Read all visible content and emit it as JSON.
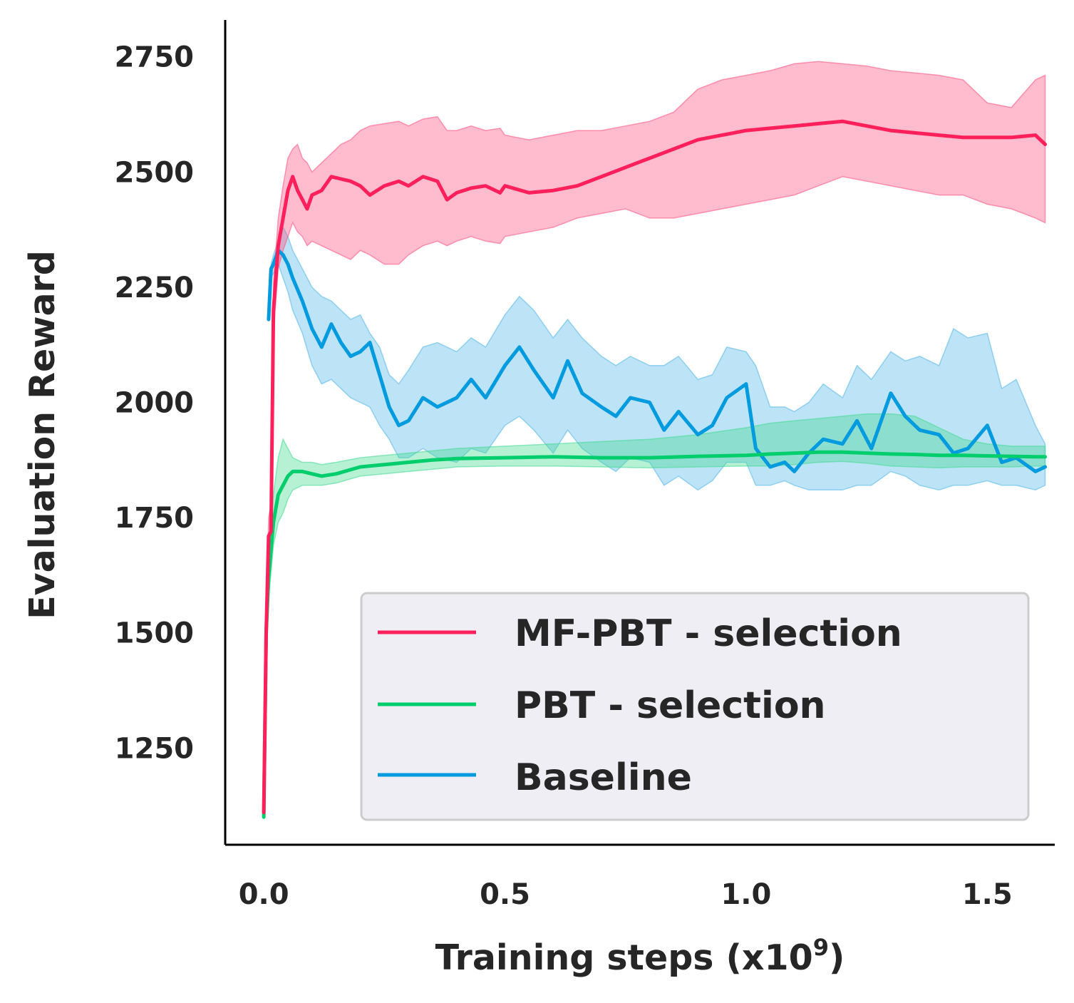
{
  "chart_data": {
    "type": "line",
    "title": "",
    "xlabel_prefix": "Training steps (x10",
    "xlabel_exp": "9",
    "xlabel_suffix": ")",
    "ylabel": "Evaluation Reward",
    "xlim": [
      -0.08,
      1.64
    ],
    "ylim": [
      1040,
      2830
    ],
    "x_ticks": [
      {
        "value": 0.0,
        "label": "0.0"
      },
      {
        "value": 0.5,
        "label": "0.5"
      },
      {
        "value": 1.0,
        "label": "1.0"
      },
      {
        "value": 1.5,
        "label": "1.5"
      }
    ],
    "y_ticks": [
      {
        "value": 1250,
        "label": "1250"
      },
      {
        "value": 1500,
        "label": "1500"
      },
      {
        "value": 1750,
        "label": "1750"
      },
      {
        "value": 2000,
        "label": "2000"
      },
      {
        "value": 2250,
        "label": "2250"
      },
      {
        "value": 2500,
        "label": "2500"
      },
      {
        "value": 2750,
        "label": "2750"
      }
    ],
    "grid": false,
    "legend_position": "lower-right",
    "series": [
      {
        "name": "MF-PBT - selection",
        "color": "#ff1f5b",
        "band_color": "#ff4f7f",
        "x": [
          0.0,
          0.005,
          0.01,
          0.015,
          0.02,
          0.03,
          0.04,
          0.05,
          0.06,
          0.07,
          0.08,
          0.09,
          0.1,
          0.12,
          0.14,
          0.16,
          0.18,
          0.2,
          0.22,
          0.25,
          0.28,
          0.3,
          0.33,
          0.36,
          0.38,
          0.4,
          0.43,
          0.46,
          0.49,
          0.5,
          0.55,
          0.6,
          0.65,
          0.7,
          0.75,
          0.8,
          0.85,
          0.9,
          0.95,
          1.0,
          1.05,
          1.1,
          1.15,
          1.2,
          1.25,
          1.3,
          1.35,
          1.4,
          1.45,
          1.5,
          1.55,
          1.6,
          1.62
        ],
        "y": [
          1110,
          1500,
          1710,
          1720,
          2200,
          2340,
          2400,
          2460,
          2490,
          2460,
          2440,
          2420,
          2450,
          2460,
          2490,
          2485,
          2480,
          2470,
          2450,
          2470,
          2480,
          2470,
          2490,
          2480,
          2440,
          2455,
          2465,
          2470,
          2455,
          2470,
          2455,
          2460,
          2470,
          2490,
          2510,
          2530,
          2550,
          2570,
          2580,
          2590,
          2595,
          2600,
          2605,
          2610,
          2600,
          2590,
          2585,
          2580,
          2575,
          2575,
          2575,
          2580,
          2560
        ],
        "upper": [
          1110,
          1530,
          1750,
          1780,
          2260,
          2400,
          2470,
          2530,
          2550,
          2560,
          2530,
          2520,
          2500,
          2520,
          2540,
          2560,
          2570,
          2590,
          2600,
          2605,
          2610,
          2600,
          2615,
          2620,
          2590,
          2590,
          2600,
          2590,
          2595,
          2580,
          2570,
          2580,
          2590,
          2590,
          2600,
          2610,
          2630,
          2680,
          2700,
          2710,
          2720,
          2735,
          2740,
          2735,
          2730,
          2720,
          2715,
          2710,
          2700,
          2650,
          2640,
          2700,
          2710
        ],
        "lower": [
          1110,
          1470,
          1680,
          1680,
          2150,
          2290,
          2330,
          2360,
          2390,
          2370,
          2360,
          2340,
          2350,
          2340,
          2330,
          2320,
          2310,
          2330,
          2320,
          2300,
          2300,
          2320,
          2340,
          2350,
          2340,
          2350,
          2360,
          2350,
          2345,
          2360,
          2370,
          2380,
          2400,
          2410,
          2420,
          2400,
          2400,
          2410,
          2420,
          2430,
          2440,
          2450,
          2470,
          2490,
          2480,
          2470,
          2460,
          2450,
          2450,
          2430,
          2420,
          2400,
          2390
        ]
      },
      {
        "name": "PBT - selection",
        "color": "#00cd6c",
        "band_color": "#40db8f",
        "x": [
          0.0,
          0.005,
          0.01,
          0.015,
          0.02,
          0.03,
          0.04,
          0.05,
          0.06,
          0.08,
          0.1,
          0.12,
          0.15,
          0.2,
          0.25,
          0.3,
          0.35,
          0.4,
          0.5,
          0.6,
          0.7,
          0.8,
          0.9,
          1.0,
          1.05,
          1.1,
          1.15,
          1.2,
          1.25,
          1.3,
          1.35,
          1.4,
          1.45,
          1.5,
          1.55,
          1.6,
          1.62
        ],
        "y": [
          1100,
          1500,
          1620,
          1680,
          1740,
          1800,
          1820,
          1840,
          1850,
          1850,
          1845,
          1840,
          1845,
          1860,
          1865,
          1870,
          1875,
          1878,
          1880,
          1882,
          1880,
          1880,
          1883,
          1885,
          1888,
          1890,
          1892,
          1892,
          1890,
          1888,
          1887,
          1885,
          1885,
          1884,
          1883,
          1882,
          1882
        ],
        "upper": [
          1100,
          1520,
          1660,
          1730,
          1800,
          1880,
          1920,
          1900,
          1880,
          1870,
          1870,
          1865,
          1870,
          1880,
          1885,
          1890,
          1895,
          1900,
          1905,
          1910,
          1915,
          1920,
          1930,
          1945,
          1955,
          1960,
          1965,
          1970,
          1975,
          1975,
          1970,
          1945,
          1920,
          1910,
          1905,
          1905,
          1905
        ],
        "lower": [
          1100,
          1480,
          1580,
          1630,
          1690,
          1740,
          1760,
          1790,
          1810,
          1820,
          1820,
          1820,
          1825,
          1840,
          1845,
          1850,
          1855,
          1860,
          1862,
          1862,
          1860,
          1858,
          1860,
          1862,
          1862,
          1865,
          1870,
          1872,
          1868,
          1862,
          1860,
          1858,
          1860,
          1860,
          1860,
          1862,
          1862
        ]
      },
      {
        "name": "Baseline",
        "color": "#009ade",
        "band_color": "#4fb6e8",
        "x": [
          0.01,
          0.015,
          0.02,
          0.03,
          0.04,
          0.05,
          0.06,
          0.08,
          0.1,
          0.12,
          0.14,
          0.16,
          0.18,
          0.2,
          0.22,
          0.24,
          0.26,
          0.28,
          0.3,
          0.33,
          0.36,
          0.4,
          0.43,
          0.46,
          0.5,
          0.53,
          0.56,
          0.6,
          0.63,
          0.66,
          0.7,
          0.73,
          0.76,
          0.8,
          0.83,
          0.86,
          0.9,
          0.93,
          0.96,
          1.0,
          1.02,
          1.05,
          1.08,
          1.1,
          1.13,
          1.16,
          1.2,
          1.23,
          1.26,
          1.3,
          1.33,
          1.36,
          1.4,
          1.43,
          1.46,
          1.5,
          1.53,
          1.56,
          1.6,
          1.62
        ],
        "y": [
          2180,
          2290,
          2300,
          2330,
          2320,
          2300,
          2270,
          2220,
          2160,
          2120,
          2170,
          2130,
          2100,
          2110,
          2130,
          2060,
          1990,
          1950,
          1960,
          2010,
          1990,
          2010,
          2050,
          2010,
          2080,
          2120,
          2070,
          2010,
          2090,
          2020,
          1990,
          1970,
          2010,
          2000,
          1940,
          1980,
          1930,
          1950,
          2010,
          2040,
          1900,
          1860,
          1870,
          1850,
          1890,
          1920,
          1910,
          1960,
          1900,
          2020,
          1970,
          1940,
          1930,
          1890,
          1900,
          1950,
          1870,
          1880,
          1850,
          1860
        ],
        "upper": [
          2180,
          2300,
          2320,
          2350,
          2380,
          2360,
          2330,
          2290,
          2250,
          2230,
          2220,
          2200,
          2180,
          2190,
          2150,
          2120,
          2060,
          2040,
          2070,
          2120,
          2130,
          2110,
          2140,
          2120,
          2190,
          2230,
          2200,
          2140,
          2180,
          2140,
          2100,
          2080,
          2100,
          2080,
          2080,
          2100,
          2050,
          2060,
          2120,
          2110,
          2080,
          1990,
          1990,
          1980,
          2000,
          2040,
          2010,
          2080,
          2050,
          2110,
          2090,
          2100,
          2080,
          2160,
          2140,
          2150,
          2030,
          2050,
          1950,
          1910
        ],
        "lower": [
          2180,
          2270,
          2280,
          2300,
          2270,
          2240,
          2200,
          2150,
          2080,
          2040,
          2050,
          2030,
          2010,
          2000,
          1990,
          1950,
          1920,
          1880,
          1880,
          1900,
          1880,
          1870,
          1900,
          1890,
          1950,
          1970,
          1940,
          1890,
          1940,
          1900,
          1870,
          1850,
          1880,
          1870,
          1820,
          1840,
          1810,
          1830,
          1870,
          1870,
          1820,
          1820,
          1830,
          1820,
          1810,
          1810,
          1810,
          1820,
          1820,
          1850,
          1840,
          1820,
          1810,
          1820,
          1820,
          1830,
          1820,
          1820,
          1810,
          1820
        ]
      }
    ]
  }
}
